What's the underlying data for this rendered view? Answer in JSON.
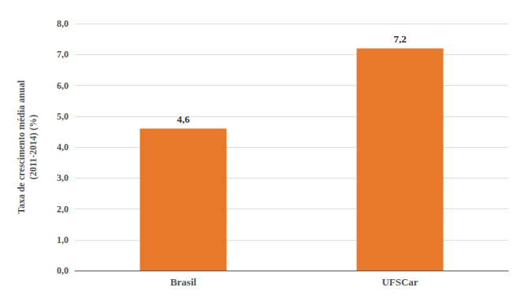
{
  "chart_data": {
    "type": "bar",
    "categories": [
      "Brasil",
      "UFSCar"
    ],
    "values": [
      4.6,
      7.2
    ],
    "value_labels": [
      "4,6",
      "7,2"
    ],
    "data_labels": true,
    "color": "#E8792A",
    "ylabel": "Taxa de crescimento média anual\n(2011-2014) (%)",
    "ylim": [
      0,
      8.0
    ],
    "yticks": [
      {
        "value": 0.0,
        "label": "0,0"
      },
      {
        "value": 1.0,
        "label": "1,0"
      },
      {
        "value": 2.0,
        "label": "2,0"
      },
      {
        "value": 3.0,
        "label": "3,0"
      },
      {
        "value": 4.0,
        "label": "4,0"
      },
      {
        "value": 5.0,
        "label": "5,0"
      },
      {
        "value": 6.0,
        "label": "6,0"
      },
      {
        "value": 7.0,
        "label": "7,0"
      },
      {
        "value": 8.0,
        "label": "8,0"
      }
    ],
    "grid": true
  }
}
